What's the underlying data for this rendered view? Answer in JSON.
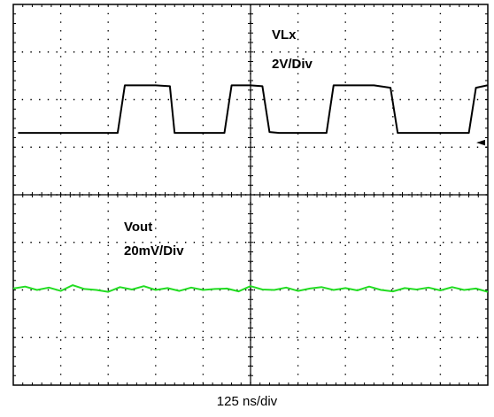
{
  "colors": {
    "background": "#ffffff",
    "frame": "#000000",
    "grid_dots": "#000000",
    "vlx_trace": "#000000",
    "vout_trace": "#22dd22"
  },
  "chart_data": {
    "type": "line",
    "title": "",
    "grid": {
      "divisions_x": 10,
      "divisions_y": 8,
      "style": "dotted"
    },
    "xlabel": "125 ns/div",
    "xlim": [
      0,
      10
    ],
    "ylim": [
      0,
      8
    ],
    "series": [
      {
        "name": "VLx",
        "scale_label": "2V/Div",
        "color": "#000000",
        "x": [
          0.1,
          2.0,
          2.2,
          2.35,
          3.0,
          3.3,
          3.4,
          4.1,
          4.45,
          4.6,
          5.0,
          5.25,
          5.4,
          5.6,
          5.75,
          6.6,
          6.75,
          6.9,
          7.6,
          7.95,
          8.1,
          8.8,
          8.95,
          9.15,
          9.6,
          9.75,
          9.99
        ],
        "values": [
          5.3,
          5.3,
          5.3,
          6.3,
          6.3,
          6.28,
          5.3,
          5.3,
          5.3,
          6.3,
          6.3,
          6.28,
          5.32,
          5.3,
          5.3,
          5.3,
          6.3,
          6.3,
          6.3,
          6.25,
          5.3,
          5.3,
          5.3,
          5.3,
          5.3,
          6.25,
          6.3
        ]
      },
      {
        "name": "Vout",
        "scale_label": "20mV/Div",
        "color": "#22dd22",
        "x": [
          0.0,
          0.25,
          0.5,
          0.75,
          1.0,
          1.25,
          1.5,
          1.75,
          2.0,
          2.25,
          2.5,
          2.75,
          3.0,
          3.25,
          3.5,
          3.75,
          4.0,
          4.25,
          4.5,
          4.75,
          5.0,
          5.25,
          5.5,
          5.75,
          6.0,
          6.25,
          6.5,
          6.75,
          7.0,
          7.25,
          7.5,
          7.75,
          8.0,
          8.25,
          8.5,
          8.75,
          9.0,
          9.25,
          9.5,
          9.75,
          10.0
        ],
        "values": [
          2.03,
          2.07,
          2.0,
          2.05,
          1.98,
          2.1,
          2.02,
          2.0,
          1.96,
          2.06,
          2.01,
          2.08,
          2.0,
          2.04,
          1.98,
          2.05,
          2.0,
          2.02,
          2.03,
          1.97,
          2.08,
          2.01,
          2.0,
          2.05,
          1.98,
          2.03,
          2.06,
          2.0,
          2.04,
          1.99,
          2.07,
          2.0,
          1.97,
          2.04,
          2.01,
          2.05,
          1.99,
          2.06,
          2.0,
          2.03,
          1.96
        ]
      }
    ],
    "annotations": [
      {
        "text": "VLx",
        "near_series": "VLx"
      },
      {
        "text": "2V/Div",
        "near_series": "VLx"
      },
      {
        "text": "Vout",
        "near_series": "Vout"
      },
      {
        "text": "20mV/Div",
        "near_series": "Vout"
      }
    ],
    "marker": {
      "symbol": "◄",
      "meaning": "channel reference level",
      "side": "right",
      "y": 5.0
    }
  }
}
